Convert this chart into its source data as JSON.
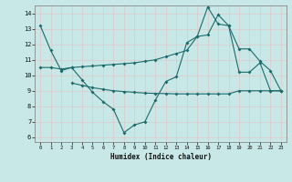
{
  "xlabel": "Humidex (Indice chaleur)",
  "bg_color": "#c8e8e8",
  "grid_color": "#e0c8c8",
  "line_color": "#1a6b6b",
  "xticks": [
    0,
    1,
    2,
    3,
    4,
    5,
    6,
    7,
    8,
    9,
    10,
    11,
    12,
    13,
    14,
    15,
    16,
    17,
    18,
    19,
    20,
    21,
    22,
    23
  ],
  "yticks": [
    6,
    7,
    8,
    9,
    10,
    11,
    12,
    13,
    14
  ],
  "line1_x": [
    0,
    1,
    2,
    3,
    4,
    5,
    6,
    7,
    8,
    9,
    10,
    11,
    12,
    13,
    14,
    15,
    16,
    17,
    18,
    19,
    20,
    21,
    22,
    23
  ],
  "line1_y": [
    13.2,
    11.6,
    10.3,
    10.5,
    9.7,
    8.9,
    8.3,
    7.8,
    6.3,
    6.8,
    7.0,
    8.4,
    9.6,
    9.9,
    12.1,
    12.5,
    14.4,
    13.3,
    13.2,
    10.2,
    10.2,
    10.8,
    9.0,
    9.0
  ],
  "line2_x": [
    0,
    1,
    2,
    3,
    4,
    5,
    6,
    7,
    8,
    9,
    10,
    11,
    12,
    13,
    14,
    15,
    16,
    17,
    18,
    19,
    20,
    21,
    22,
    23
  ],
  "line2_y": [
    10.5,
    10.5,
    10.4,
    10.5,
    10.55,
    10.6,
    10.65,
    10.7,
    10.75,
    10.8,
    10.9,
    11.0,
    11.2,
    11.4,
    11.6,
    12.5,
    12.6,
    13.9,
    13.2,
    11.7,
    11.7,
    10.9,
    10.3,
    9.0
  ],
  "line3_x": [
    3,
    4,
    5,
    6,
    7,
    8,
    9,
    10,
    11,
    12,
    13,
    14,
    15,
    16,
    17,
    18,
    19,
    20,
    21,
    22,
    23
  ],
  "line3_y": [
    9.5,
    9.35,
    9.2,
    9.1,
    9.0,
    8.95,
    8.9,
    8.85,
    8.83,
    8.82,
    8.8,
    8.8,
    8.8,
    8.8,
    8.8,
    8.8,
    9.0,
    9.0,
    9.0,
    9.0,
    9.0
  ]
}
